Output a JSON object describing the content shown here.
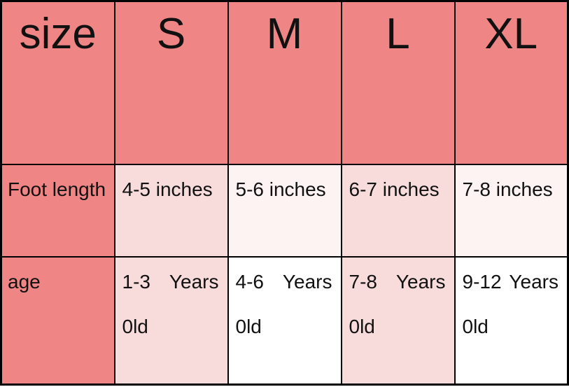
{
  "colors": {
    "salmon": "#f08585",
    "light_pink": "#f8dcdc",
    "pale_pink": "#fdf3f3",
    "white": "#ffffff",
    "border": "#000000",
    "text": "#111111"
  },
  "chart_data": {
    "type": "table",
    "title": "",
    "columns": [
      "size",
      "S",
      "M",
      "L",
      "XL"
    ],
    "rows": [
      {
        "label": "Foot length",
        "values": [
          "4-5 inches",
          "5-6 inches",
          "6-7 inches",
          "7-8 inches"
        ]
      },
      {
        "label": "age",
        "values": [
          "1-3 Years 0ld",
          "4-6 Years 0ld",
          "7-8 Years 0ld",
          "9-12 Years 0ld"
        ]
      }
    ]
  },
  "age_display": [
    {
      "left": "1-3",
      "right": "Years",
      "second": "0ld"
    },
    {
      "left": "4-6",
      "right": "Years",
      "second": "0ld"
    },
    {
      "left": "7-8",
      "right": "Years",
      "second": "0ld"
    },
    {
      "left": "9-12",
      "right": "Years",
      "second": "0ld"
    }
  ]
}
